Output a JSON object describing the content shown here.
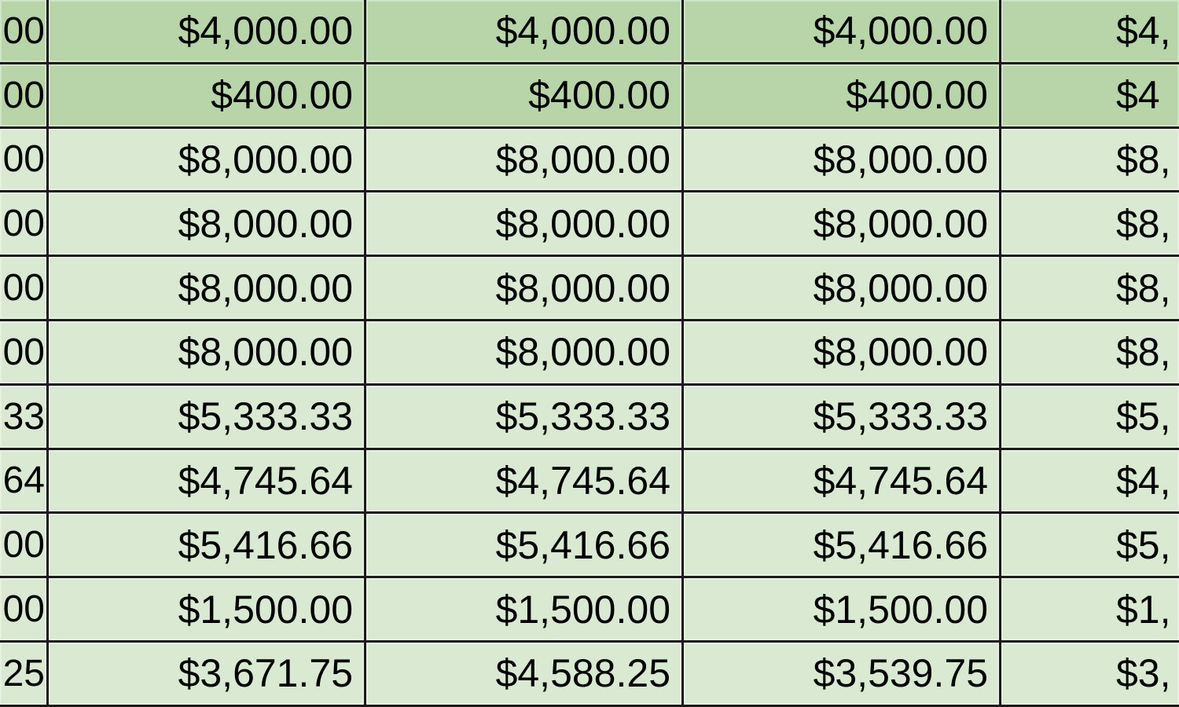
{
  "colors": {
    "header_rows": "#b7d5a8",
    "body_rows": "#d9e9d2",
    "grid": "#1a1a1a"
  },
  "rows": [
    {
      "shade": "dark",
      "cells": [
        "00",
        "$4,000.00",
        "$4,000.00",
        "$4,000.00",
        "$4,"
      ]
    },
    {
      "shade": "dark",
      "cells": [
        "00",
        "$400.00",
        "$400.00",
        "$400.00",
        "$4"
      ]
    },
    {
      "shade": "light",
      "cells": [
        "00",
        "$8,000.00",
        "$8,000.00",
        "$8,000.00",
        "$8,"
      ]
    },
    {
      "shade": "light",
      "cells": [
        "00",
        "$8,000.00",
        "$8,000.00",
        "$8,000.00",
        "$8,"
      ]
    },
    {
      "shade": "light",
      "cells": [
        "00",
        "$8,000.00",
        "$8,000.00",
        "$8,000.00",
        "$8,"
      ]
    },
    {
      "shade": "light",
      "cells": [
        "00",
        "$8,000.00",
        "$8,000.00",
        "$8,000.00",
        "$8,"
      ]
    },
    {
      "shade": "light",
      "cells": [
        "33",
        "$5,333.33",
        "$5,333.33",
        "$5,333.33",
        "$5,"
      ]
    },
    {
      "shade": "light",
      "cells": [
        "64",
        "$4,745.64",
        "$4,745.64",
        "$4,745.64",
        "$4,"
      ]
    },
    {
      "shade": "light",
      "cells": [
        "00",
        "$5,416.66",
        "$5,416.66",
        "$5,416.66",
        "$5,"
      ]
    },
    {
      "shade": "light",
      "cells": [
        "00",
        "$1,500.00",
        "$1,500.00",
        "$1,500.00",
        "$1,"
      ]
    },
    {
      "shade": "light",
      "cells": [
        "25",
        "$3,671.75",
        "$4,588.25",
        "$3,539.75",
        "$3,"
      ]
    }
  ]
}
